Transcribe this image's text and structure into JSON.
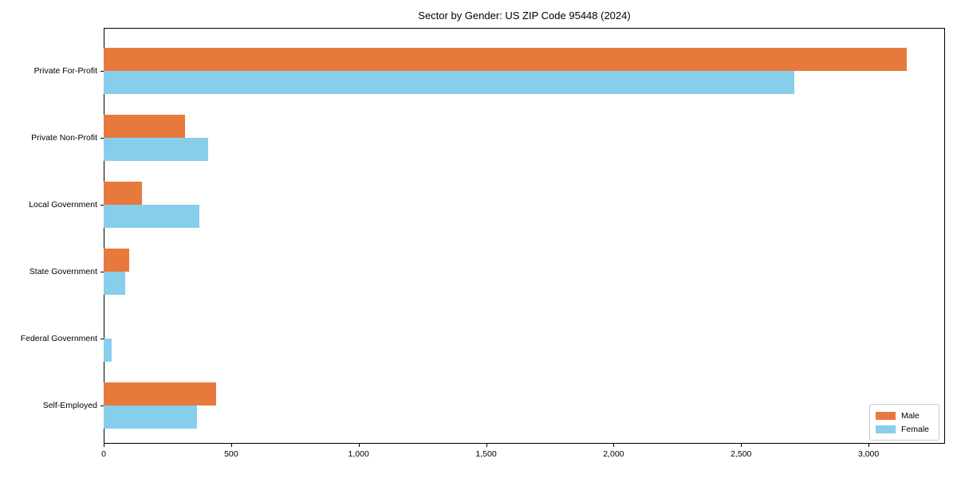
{
  "chart_data": {
    "type": "bar",
    "orientation": "horizontal",
    "title": "Sector by Gender: US ZIP Code 95448 (2024)",
    "categories": [
      "Private For-Profit",
      "Private Non-Profit",
      "Local Government",
      "State Government",
      "Federal Government",
      "Self-Employed"
    ],
    "series": [
      {
        "name": "Male",
        "color": "#E8793D",
        "values": [
          3150,
          320,
          150,
          100,
          0,
          440
        ]
      },
      {
        "name": "Female",
        "color": "#87CEEB",
        "values": [
          2710,
          410,
          375,
          85,
          30,
          365
        ]
      }
    ],
    "xlabel": "",
    "ylabel": "",
    "xlim": [
      0,
      3300
    ],
    "x_ticks": [
      0,
      500,
      1000,
      1500,
      2000,
      2500,
      3000
    ],
    "x_tick_labels": [
      "0",
      "500",
      "1,000",
      "1,500",
      "2,000",
      "2,500",
      "3,000"
    ],
    "grid": false,
    "legend_position": "lower right",
    "axis_color": "#000000",
    "background_color": "#ffffff"
  }
}
